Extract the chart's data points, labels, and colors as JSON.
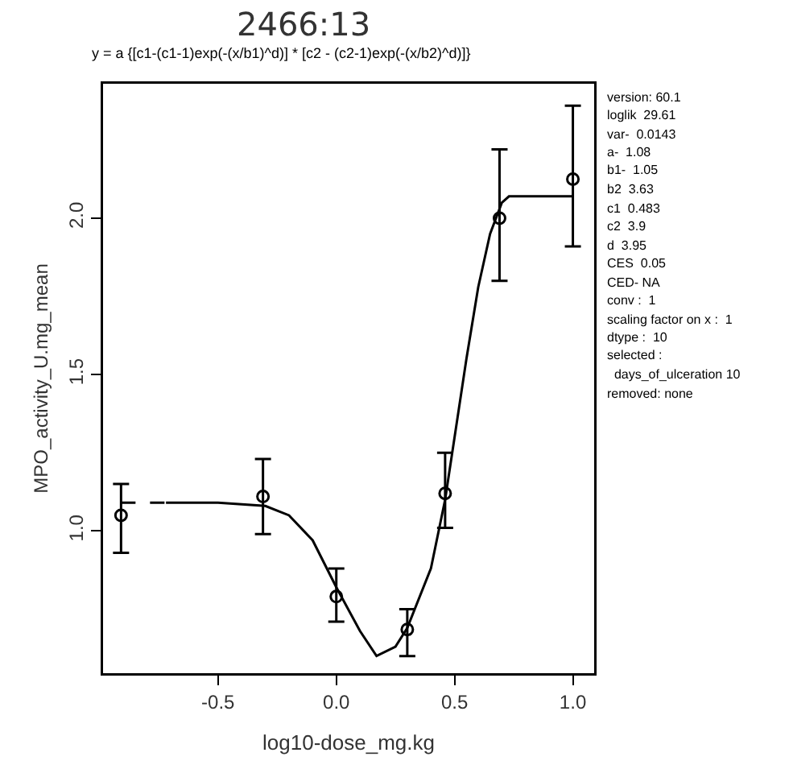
{
  "chart_data": {
    "type": "scatter",
    "title": "2466:13",
    "subtitle": "y = a {[c1-(c1-1)exp(-(x/b1)^d)] * [c2 - (c2-1)exp(-(x/b2)^d)]}",
    "xlabel": "log10-dose_mg.kg",
    "ylabel": "MPO_activity_U.mg_mean",
    "xlim": [
      -0.986,
      1.09
    ],
    "ylim": [
      0.545,
      2.43
    ],
    "xticks": [
      -0.5,
      {
        "value": 0,
        "label": "0.0"
      },
      0.5,
      {
        "value": 1,
        "label": "1.0"
      }
    ],
    "yticks": [
      {
        "value": 1,
        "label": "1.0"
      },
      1.5,
      {
        "value": 2,
        "label": "2.0"
      }
    ],
    "grid": false,
    "marker": "circle",
    "series": [
      {
        "color": "#000000",
        "x": [
          -0.91,
          -0.31,
          0,
          0.3,
          0.46,
          0.69,
          1.0
        ],
        "values": [
          1.05,
          1.11,
          0.79,
          0.685,
          1.12,
          2.0,
          2.125
        ],
        "errors": [
          [
            0.93,
            1.15
          ],
          [
            0.99,
            1.23
          ],
          [
            0.71,
            0.88
          ],
          [
            0.6,
            0.75
          ],
          [
            1.01,
            1.25
          ],
          [
            1.8,
            2.22
          ],
          [
            1.91,
            2.36
          ]
        ]
      },
      {
        "type": "line",
        "color": "#000000",
        "marker": "none",
        "line_style": "dashed",
        "x": [
          -0.91,
          -0.72
        ],
        "values": [
          1.09,
          1.09
        ]
      },
      {
        "type": "line",
        "color": "#000000",
        "marker": "none",
        "line_style": "solid",
        "x": [
          -0.72,
          -0.5,
          -0.3,
          -0.2,
          -0.1,
          0,
          0.1,
          0.17,
          0.25,
          0.3,
          0.4,
          0.46,
          0.5,
          0.55,
          0.6,
          0.65,
          0.7,
          0.73,
          1.0
        ],
        "values": [
          1.09,
          1.09,
          1.08,
          1.05,
          0.97,
          0.82,
          0.68,
          0.6,
          0.63,
          0.69,
          0.88,
          1.1,
          1.3,
          1.55,
          1.78,
          1.95,
          2.05,
          2.07,
          2.07
        ]
      }
    ],
    "annotations": [
      "version: 60.1",
      "loglik  29.61",
      "var-  0.0143",
      "a-  1.08",
      "b1-  1.05",
      "b2  3.63",
      "c1  0.483",
      "c2  3.9",
      "d  3.95",
      "CES  0.05",
      "CED- NA",
      "conv :  1",
      "scaling factor on x :  1",
      "dtype :  10",
      "selected :",
      "  days_of_ulceration 10",
      "removed: none"
    ]
  }
}
